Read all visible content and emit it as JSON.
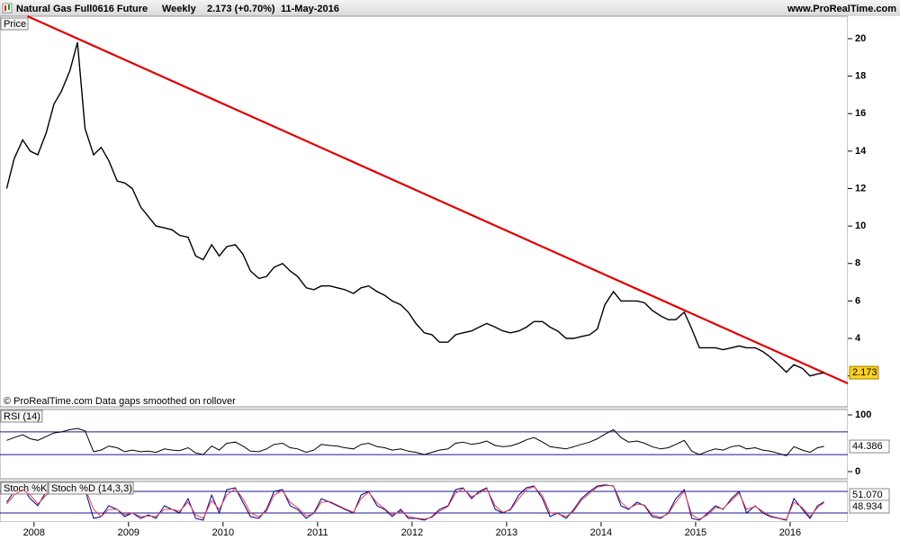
{
  "chart_data": [
    {
      "type": "line",
      "title": "Natural Gas Full0616 Future",
      "interval": "Weekly",
      "quote": "2.173 (+0.70%)",
      "date": "11-May-2016",
      "source": "www.ProRealTime.com",
      "footnote": "© ProRealTime.com  Data gaps smoothed on rollover",
      "panel_label": "Price",
      "x": [
        2007.71,
        2007.79,
        2007.88,
        2007.96,
        2008.04,
        2008.13,
        2008.21,
        2008.29,
        2008.38,
        2008.46,
        2008.54,
        2008.63,
        2008.71,
        2008.79,
        2008.88,
        2008.96,
        2009.04,
        2009.13,
        2009.21,
        2009.29,
        2009.38,
        2009.46,
        2009.54,
        2009.63,
        2009.71,
        2009.79,
        2009.88,
        2009.96,
        2010.04,
        2010.13,
        2010.21,
        2010.29,
        2010.38,
        2010.46,
        2010.54,
        2010.63,
        2010.71,
        2010.79,
        2010.88,
        2010.96,
        2011.04,
        2011.13,
        2011.21,
        2011.29,
        2011.38,
        2011.46,
        2011.54,
        2011.63,
        2011.71,
        2011.79,
        2011.88,
        2011.96,
        2012.04,
        2012.13,
        2012.21,
        2012.29,
        2012.38,
        2012.46,
        2012.54,
        2012.63,
        2012.71,
        2012.79,
        2012.88,
        2012.96,
        2013.04,
        2013.13,
        2013.21,
        2013.29,
        2013.38,
        2013.46,
        2013.54,
        2013.63,
        2013.71,
        2013.79,
        2013.88,
        2013.96,
        2014.04,
        2014.13,
        2014.21,
        2014.29,
        2014.38,
        2014.46,
        2014.54,
        2014.63,
        2014.71,
        2014.79,
        2014.88,
        2014.96,
        2015.04,
        2015.13,
        2015.21,
        2015.29,
        2015.38,
        2015.46,
        2015.54,
        2015.63,
        2015.71,
        2015.79,
        2015.88,
        2015.96,
        2016.04,
        2016.13,
        2016.21,
        2016.29,
        2016.36
      ],
      "series": [
        {
          "color": "#000000",
          "values": [
            12.0,
            13.6,
            14.6,
            14.0,
            13.8,
            15.0,
            16.5,
            17.2,
            18.3,
            19.8,
            15.2,
            13.8,
            14.2,
            13.5,
            12.4,
            12.3,
            12.0,
            11.0,
            10.5,
            10.0,
            9.9,
            9.8,
            9.5,
            9.4,
            8.4,
            8.2,
            9.0,
            8.4,
            8.9,
            9.0,
            8.5,
            7.6,
            7.2,
            7.3,
            7.8,
            8.0,
            7.6,
            7.3,
            6.7,
            6.6,
            6.8,
            6.8,
            6.7,
            6.6,
            6.4,
            6.7,
            6.8,
            6.5,
            6.3,
            6.0,
            5.8,
            5.4,
            4.8,
            4.3,
            4.2,
            3.8,
            3.8,
            4.2,
            4.3,
            4.4,
            4.6,
            4.8,
            4.6,
            4.4,
            4.3,
            4.4,
            4.6,
            4.9,
            4.9,
            4.6,
            4.4,
            4.0,
            4.0,
            4.1,
            4.2,
            4.5,
            5.8,
            6.5,
            6.0,
            6.0,
            6.0,
            5.9,
            5.5,
            5.2,
            5.0,
            5.0,
            5.4,
            4.5,
            3.5,
            3.5,
            3.5,
            3.4,
            3.5,
            3.6,
            3.5,
            3.5,
            3.3,
            3.0,
            2.6,
            2.2,
            2.6,
            2.4,
            2.0,
            2.1,
            2.173
          ]
        }
      ],
      "trendline": {
        "color": "#e00000",
        "x": [
          2007.93,
          2016.61
        ],
        "values": [
          21.2,
          1.6
        ]
      },
      "xlim": [
        2007.64,
        2016.61
      ],
      "ylim": [
        0.35,
        21.2
      ],
      "yticks": [
        2,
        4,
        6,
        8,
        10,
        12,
        14,
        16,
        18,
        20
      ]
    },
    {
      "type": "line",
      "panel_label": "RSI (14)",
      "x": [
        2007.71,
        2007.79,
        2007.88,
        2007.96,
        2008.04,
        2008.13,
        2008.21,
        2008.29,
        2008.38,
        2008.46,
        2008.54,
        2008.63,
        2008.71,
        2008.79,
        2008.88,
        2008.96,
        2009.04,
        2009.13,
        2009.21,
        2009.29,
        2009.38,
        2009.46,
        2009.54,
        2009.63,
        2009.71,
        2009.79,
        2009.88,
        2009.96,
        2010.04,
        2010.13,
        2010.21,
        2010.29,
        2010.38,
        2010.46,
        2010.54,
        2010.63,
        2010.71,
        2010.79,
        2010.88,
        2010.96,
        2011.04,
        2011.13,
        2011.21,
        2011.29,
        2011.38,
        2011.46,
        2011.54,
        2011.63,
        2011.71,
        2011.79,
        2011.88,
        2011.96,
        2012.04,
        2012.13,
        2012.21,
        2012.29,
        2012.38,
        2012.46,
        2012.54,
        2012.63,
        2012.71,
        2012.79,
        2012.88,
        2012.96,
        2013.04,
        2013.13,
        2013.21,
        2013.29,
        2013.38,
        2013.46,
        2013.54,
        2013.63,
        2013.71,
        2013.79,
        2013.88,
        2013.96,
        2014.04,
        2014.13,
        2014.21,
        2014.29,
        2014.38,
        2014.46,
        2014.54,
        2014.63,
        2014.71,
        2014.79,
        2014.88,
        2014.96,
        2015.04,
        2015.13,
        2015.21,
        2015.29,
        2015.38,
        2015.46,
        2015.54,
        2015.63,
        2015.71,
        2015.79,
        2015.88,
        2015.96,
        2016.04,
        2016.13,
        2016.21,
        2016.29,
        2016.36
      ],
      "series": [
        {
          "color": "#000000",
          "values": [
            55,
            60,
            65,
            58,
            55,
            62,
            68,
            70,
            74,
            76,
            72,
            35,
            38,
            45,
            42,
            35,
            38,
            35,
            36,
            34,
            40,
            38,
            37,
            42,
            33,
            30,
            45,
            38,
            50,
            52,
            45,
            36,
            35,
            40,
            48,
            50,
            42,
            40,
            34,
            38,
            48,
            46,
            45,
            42,
            40,
            48,
            50,
            44,
            42,
            38,
            40,
            36,
            34,
            30,
            34,
            38,
            40,
            50,
            52,
            48,
            50,
            54,
            46,
            44,
            45,
            50,
            56,
            60,
            52,
            44,
            42,
            40,
            44,
            48,
            52,
            58,
            66,
            74,
            60,
            52,
            54,
            50,
            44,
            40,
            42,
            48,
            55,
            36,
            30,
            36,
            40,
            38,
            44,
            46,
            40,
            42,
            38,
            36,
            32,
            28,
            44,
            38,
            34,
            42,
            44.386
          ]
        }
      ],
      "levels": [
        30,
        70
      ],
      "level_color": "#1a1a8c",
      "xlim": [
        2007.64,
        2016.61
      ],
      "ylim": [
        -12.7,
        109.5
      ],
      "yticks": [
        0,
        100
      ]
    },
    {
      "type": "line",
      "x": [
        2007.71,
        2007.79,
        2007.88,
        2007.96,
        2008.04,
        2008.13,
        2008.21,
        2008.29,
        2008.38,
        2008.46,
        2008.54,
        2008.63,
        2008.71,
        2008.79,
        2008.88,
        2008.96,
        2009.04,
        2009.13,
        2009.21,
        2009.29,
        2009.38,
        2009.46,
        2009.54,
        2009.63,
        2009.71,
        2009.79,
        2009.88,
        2009.96,
        2010.04,
        2010.13,
        2010.21,
        2010.29,
        2010.38,
        2010.46,
        2010.54,
        2010.63,
        2010.71,
        2010.79,
        2010.88,
        2010.96,
        2011.04,
        2011.13,
        2011.21,
        2011.29,
        2011.38,
        2011.46,
        2011.54,
        2011.63,
        2011.71,
        2011.79,
        2011.88,
        2011.96,
        2012.04,
        2012.13,
        2012.21,
        2012.29,
        2012.38,
        2012.46,
        2012.54,
        2012.63,
        2012.71,
        2012.79,
        2012.88,
        2012.96,
        2013.04,
        2013.13,
        2013.21,
        2013.29,
        2013.38,
        2013.46,
        2013.54,
        2013.63,
        2013.71,
        2013.79,
        2013.88,
        2013.96,
        2014.04,
        2014.13,
        2014.21,
        2014.29,
        2014.38,
        2014.46,
        2014.54,
        2014.63,
        2014.71,
        2014.79,
        2014.88,
        2014.96,
        2015.04,
        2015.13,
        2015.21,
        2015.29,
        2015.38,
        2015.46,
        2015.54,
        2015.63,
        2015.71,
        2015.79,
        2015.88,
        2015.96,
        2016.04,
        2016.13,
        2016.21,
        2016.29,
        2016.36
      ],
      "series": [
        {
          "name": "Stoch %K",
          "color": "#000080",
          "last_label": "51.070",
          "values": [
            50,
            80,
            90,
            60,
            40,
            80,
            95,
            90,
            95,
            98,
            85,
            5,
            10,
            40,
            30,
            10,
            20,
            5,
            15,
            5,
            40,
            30,
            20,
            60,
            5,
            0,
            70,
            20,
            85,
            90,
            50,
            10,
            5,
            30,
            80,
            85,
            40,
            30,
            5,
            20,
            60,
            50,
            40,
            30,
            20,
            70,
            80,
            40,
            30,
            10,
            30,
            5,
            5,
            0,
            10,
            30,
            40,
            85,
            90,
            60,
            80,
            90,
            30,
            20,
            30,
            70,
            90,
            95,
            60,
            10,
            20,
            5,
            30,
            60,
            80,
            95,
            98,
            95,
            40,
            30,
            50,
            40,
            10,
            5,
            20,
            60,
            85,
            5,
            0,
            20,
            40,
            30,
            60,
            80,
            20,
            40,
            20,
            10,
            5,
            0,
            60,
            30,
            5,
            40,
            51.07
          ]
        },
        {
          "name": "Stoch %D (14,3,3)",
          "color": "#e0405a",
          "values": [
            45,
            70,
            85,
            70,
            45,
            70,
            90,
            92,
            93,
            95,
            90,
            30,
            10,
            30,
            30,
            15,
            20,
            10,
            12,
            10,
            30,
            30,
            25,
            50,
            15,
            5,
            55,
            30,
            70,
            88,
            60,
            20,
            10,
            25,
            70,
            82,
            50,
            35,
            12,
            18,
            50,
            52,
            42,
            32,
            22,
            60,
            78,
            48,
            32,
            15,
            25,
            10,
            6,
            3,
            8,
            25,
            38,
            75,
            88,
            65,
            75,
            88,
            40,
            22,
            28,
            60,
            85,
            93,
            68,
            20,
            18,
            10,
            25,
            55,
            75,
            92,
            96,
            96,
            50,
            32,
            45,
            42,
            15,
            8,
            18,
            50,
            80,
            15,
            3,
            15,
            35,
            32,
            55,
            75,
            30,
            38,
            25,
            12,
            6,
            2,
            50,
            35,
            10,
            35,
            48.934
          ]
        }
      ],
      "levels": [
        20,
        80
      ],
      "level_color": "#1a1a8c",
      "xlim": [
        2007.64,
        2016.61
      ],
      "ylim": [
        -5,
        107.5
      ],
      "xticks": [
        2008,
        2009,
        2010,
        2011,
        2012,
        2013,
        2014,
        2015,
        2016
      ]
    }
  ]
}
